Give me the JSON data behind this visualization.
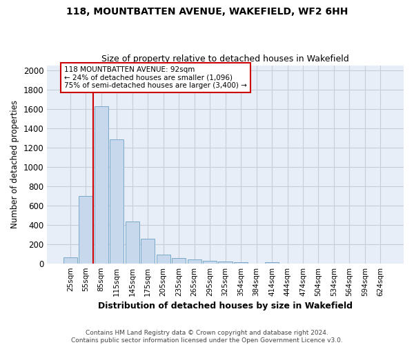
{
  "title_line1": "118, MOUNTBATTEN AVENUE, WAKEFIELD, WF2 6HH",
  "title_line2": "Size of property relative to detached houses in Wakefield",
  "xlabel": "Distribution of detached houses by size in Wakefield",
  "ylabel": "Number of detached properties",
  "categories": [
    "25sqm",
    "55sqm",
    "85sqm",
    "115sqm",
    "145sqm",
    "175sqm",
    "205sqm",
    "235sqm",
    "265sqm",
    "295sqm",
    "325sqm",
    "354sqm",
    "384sqm",
    "414sqm",
    "444sqm",
    "474sqm",
    "504sqm",
    "534sqm",
    "564sqm",
    "594sqm",
    "624sqm"
  ],
  "values": [
    65,
    695,
    1625,
    1280,
    435,
    255,
    90,
    55,
    40,
    25,
    20,
    15,
    0,
    15,
    0,
    0,
    0,
    0,
    0,
    0,
    0
  ],
  "bar_color": "#c8d8ec",
  "bar_edge_color": "#7aaac8",
  "annotation_box_text": "118 MOUNTBATTEN AVENUE: 92sqm\n← 24% of detached houses are smaller (1,096)\n75% of semi-detached houses are larger (3,400) →",
  "vline_x": 1.5,
  "vline_color": "#cc0000",
  "ylim": [
    0,
    2050
  ],
  "yticks": [
    0,
    200,
    400,
    600,
    800,
    1000,
    1200,
    1400,
    1600,
    1800,
    2000
  ],
  "footer_line1": "Contains HM Land Registry data © Crown copyright and database right 2024.",
  "footer_line2": "Contains public sector information licensed under the Open Government Licence v3.0.",
  "plot_bg_color": "#e8eef8",
  "fig_bg_color": "#ffffff",
  "grid_color": "#c8ccd8"
}
